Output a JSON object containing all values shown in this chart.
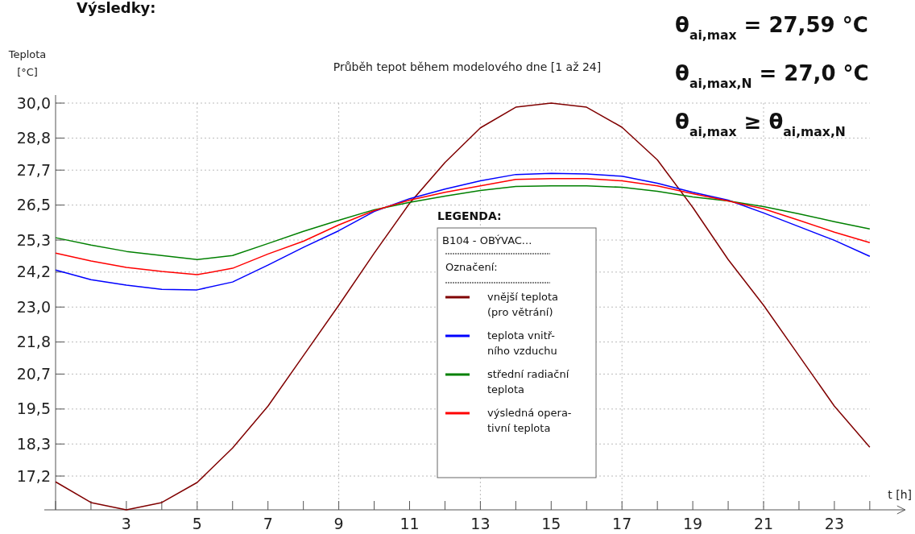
{
  "chart_data": {
    "type": "line",
    "title": "Průběh tepot během modelového dne [1 až 24]",
    "xlabel": "t [h]",
    "ylabel": "Teplota\n[°C]",
    "legend_title": "LEGENDA:",
    "legend": "right",
    "grid": true,
    "marker": "none",
    "line_style": "solid",
    "annotations": [
      "Výsledky:",
      "B104 - OBÝVAC...",
      "Označení:",
      "θ$_{ai,max}$  =  27,59 °C",
      "θ$_{ai,max,N}$  =  27,0 °C",
      "θ$_{ai,max}$ ≥  θ$_{ai,max,N}$"
    ],
    "x": [
      1,
      2,
      3,
      4,
      5,
      6,
      7,
      8,
      9,
      10,
      11,
      12,
      13,
      14,
      15,
      16,
      17,
      18,
      19,
      20,
      21,
      22,
      23,
      24
    ],
    "xlim": [
      1,
      25
    ],
    "xticks": [
      {
        "value": 1,
        "label": null
      },
      {
        "value": 2,
        "label": null
      },
      3,
      {
        "value": 4,
        "label": null
      },
      5,
      {
        "value": 6,
        "label": null
      },
      7,
      {
        "value": 8,
        "label": null
      },
      9,
      {
        "value": 10,
        "label": null
      },
      11,
      {
        "value": 12,
        "label": null
      },
      13,
      {
        "value": 14,
        "label": null
      },
      15,
      {
        "value": 16,
        "label": null
      },
      17,
      {
        "value": 18,
        "label": null
      },
      19,
      {
        "value": 20,
        "label": null
      },
      21,
      {
        "value": 22,
        "label": null
      },
      23,
      {
        "value": 24,
        "label": null
      }
    ],
    "ylim": [
      16.04,
      30
    ],
    "yticks": [
      {
        "value": 17.2,
        "label": "17,2"
      },
      {
        "value": 18.3,
        "label": "18,3"
      },
      {
        "value": 19.5,
        "label": "19,5"
      },
      {
        "value": 20.7,
        "label": "20,7"
      },
      {
        "value": 21.8,
        "label": "21,8"
      },
      {
        "value": 23.0,
        "label": "23,0"
      },
      {
        "value": 24.2,
        "label": "24,2"
      },
      {
        "value": 25.3,
        "label": "25,3"
      },
      {
        "value": 26.5,
        "label": "26,5"
      },
      {
        "value": 27.7,
        "label": "27,7"
      },
      {
        "value": 28.8,
        "label": "28,8"
      },
      {
        "value": 30,
        "label": "30,0"
      }
    ],
    "series": [
      {
        "name": "vnější teplota\n(pro větrání)",
        "color": "#800000",
        "values": [
          17.0,
          16.29,
          16.04,
          16.29,
          16.98,
          18.16,
          19.6,
          21.33,
          23.06,
          24.85,
          26.56,
          27.96,
          29.15,
          29.86,
          30.0,
          29.86,
          29.17,
          28.05,
          26.42,
          24.63,
          23.06,
          21.33,
          19.6,
          18.19
        ]
      },
      {
        "name": "teplota vnitř-\nního vzduchu",
        "color": "#0000ff",
        "values": [
          24.27,
          23.94,
          23.75,
          23.61,
          23.59,
          23.86,
          24.44,
          25.05,
          25.62,
          26.28,
          26.72,
          27.05,
          27.33,
          27.55,
          27.59,
          27.57,
          27.49,
          27.25,
          26.94,
          26.67,
          26.23,
          25.76,
          25.29,
          24.74
        ]
      },
      {
        "name": "střední radiační\nteplota",
        "color": "#008000",
        "values": [
          25.38,
          25.13,
          24.91,
          24.77,
          24.63,
          24.77,
          25.18,
          25.6,
          25.98,
          26.34,
          26.59,
          26.81,
          27.0,
          27.14,
          27.16,
          27.16,
          27.11,
          26.97,
          26.78,
          26.64,
          26.45,
          26.2,
          25.93,
          25.68
        ]
      },
      {
        "name": "výsledná opera-\ntivní teplota",
        "color": "#ff0000",
        "values": [
          24.85,
          24.58,
          24.36,
          24.22,
          24.11,
          24.33,
          24.82,
          25.26,
          25.82,
          26.31,
          26.67,
          26.94,
          27.16,
          27.38,
          27.41,
          27.41,
          27.33,
          27.16,
          26.89,
          26.64,
          26.37,
          25.98,
          25.57,
          25.21
        ]
      }
    ]
  }
}
